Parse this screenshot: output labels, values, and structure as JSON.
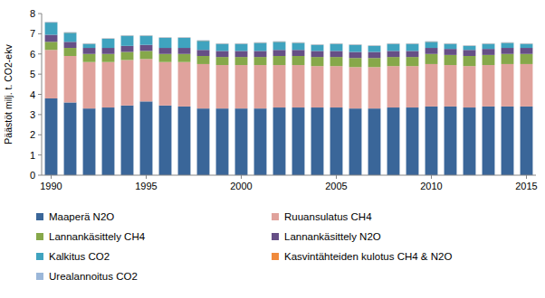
{
  "chart_data": {
    "type": "bar",
    "stacked": true,
    "grid": false,
    "legend": "bottom",
    "y_label": "Päästöt milj. t. CO2-ekv",
    "categories": [
      "1990",
      null,
      null,
      null,
      null,
      "1995",
      null,
      null,
      null,
      null,
      "2000",
      null,
      null,
      null,
      null,
      "2005",
      null,
      null,
      null,
      null,
      "2010",
      null,
      null,
      null,
      null,
      "2015"
    ],
    "ylim": [
      0,
      8
    ],
    "yticks": [
      0,
      1,
      2,
      3,
      4,
      5,
      6,
      7,
      8
    ],
    "series": [
      {
        "name": "Maaperä N2O",
        "color": "#3a6699",
        "values": [
          3.8,
          3.6,
          3.3,
          3.35,
          3.45,
          3.65,
          3.45,
          3.4,
          3.3,
          3.3,
          3.3,
          3.3,
          3.35,
          3.35,
          3.35,
          3.35,
          3.3,
          3.3,
          3.35,
          3.35,
          3.4,
          3.4,
          3.35,
          3.4,
          3.4,
          3.4
        ]
      },
      {
        "name": "Ruuansulatus CH4",
        "color": "#e0a29c",
        "values": [
          2.4,
          2.3,
          2.3,
          2.25,
          2.25,
          2.1,
          2.15,
          2.2,
          2.2,
          2.15,
          2.15,
          2.15,
          2.1,
          2.1,
          2.05,
          2.05,
          2.05,
          2.05,
          2.05,
          2.05,
          2.1,
          2.05,
          2.05,
          2.05,
          2.1,
          2.1
        ]
      },
      {
        "name": "Lannankäsittely CH4",
        "color": "#86a84a",
        "values": [
          0.4,
          0.4,
          0.4,
          0.4,
          0.4,
          0.4,
          0.4,
          0.4,
          0.4,
          0.4,
          0.4,
          0.4,
          0.45,
          0.45,
          0.45,
          0.45,
          0.45,
          0.45,
          0.45,
          0.45,
          0.5,
          0.5,
          0.5,
          0.5,
          0.5,
          0.5
        ]
      },
      {
        "name": "Lannankäsittely N2O",
        "color": "#664f86",
        "values": [
          0.35,
          0.3,
          0.3,
          0.3,
          0.3,
          0.3,
          0.3,
          0.3,
          0.3,
          0.3,
          0.3,
          0.3,
          0.3,
          0.3,
          0.3,
          0.3,
          0.3,
          0.3,
          0.3,
          0.3,
          0.3,
          0.3,
          0.3,
          0.3,
          0.3,
          0.3
        ]
      },
      {
        "name": "Kalkitus CO2",
        "color": "#3fa3bf",
        "values": [
          0.6,
          0.45,
          0.2,
          0.45,
          0.5,
          0.45,
          0.5,
          0.5,
          0.45,
          0.35,
          0.35,
          0.4,
          0.4,
          0.35,
          0.3,
          0.35,
          0.35,
          0.3,
          0.35,
          0.35,
          0.3,
          0.25,
          0.2,
          0.25,
          0.25,
          0.2
        ]
      },
      {
        "name": "Kasvintähteiden kulotus CH4 & N2O",
        "color": "#f08a3c",
        "values": [
          0.01,
          0.01,
          0.01,
          0.01,
          0.01,
          0.01,
          0.01,
          0.01,
          0.01,
          0.01,
          0.01,
          0.01,
          0.01,
          0.01,
          0.01,
          0.01,
          0.01,
          0.01,
          0.01,
          0.01,
          0.01,
          0.01,
          0.01,
          0.01,
          0.01,
          0.01
        ]
      },
      {
        "name": "Urealannoitus CO2",
        "color": "#9bb7d9",
        "values": [
          0.03,
          0.02,
          0.02,
          0.02,
          0.02,
          0.02,
          0.02,
          0.02,
          0.02,
          0.02,
          0.02,
          0.02,
          0.02,
          0.02,
          0.02,
          0.02,
          0.02,
          0.02,
          0.02,
          0.02,
          0.02,
          0.02,
          0.02,
          0.02,
          0.02,
          0.02
        ]
      }
    ]
  }
}
